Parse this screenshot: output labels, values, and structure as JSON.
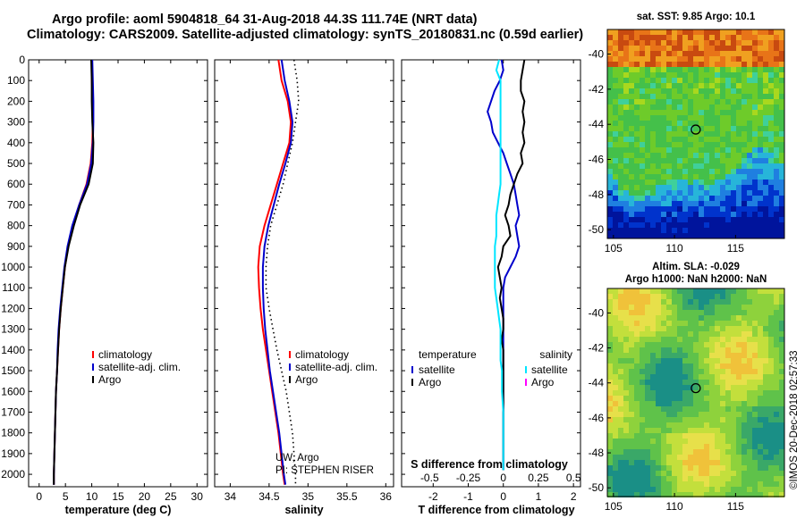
{
  "header": {
    "line1": "Argo profile: aoml 5904818_64 31-Aug-2018 44.3S 111.74E (NRT data)",
    "line2": "Climatology: CARS2009. Satellite-adjusted climatology: synTS_20180831.nc (0.59d earlier)"
  },
  "credit": "©IMOS 20-Dec-2018 02:57:33",
  "colors": {
    "climatology": "#ff0000",
    "satellite": "#0000cc",
    "argo": "#000000",
    "sat_salinity": "#00e5ff",
    "argo_salinity": "#ff00ff"
  },
  "chart_data": [
    {
      "type": "line",
      "xlabel": "temperature (deg C)",
      "ylabel": "",
      "xlim": [
        -2,
        32
      ],
      "ylim": [
        2060,
        0
      ],
      "xticks": [
        "0",
        "5",
        "10",
        "15",
        "20",
        "25",
        "30"
      ],
      "yticks": [
        "0",
        "100",
        "200",
        "300",
        "400",
        "500",
        "600",
        "700",
        "800",
        "900",
        "1000",
        "1100",
        "1200",
        "1300",
        "1400",
        "1500",
        "1600",
        "1700",
        "1800",
        "1900",
        "2000"
      ],
      "depth": [
        0,
        100,
        200,
        300,
        400,
        500,
        600,
        700,
        800,
        900,
        1000,
        1100,
        1200,
        1300,
        1400,
        1500,
        1600,
        1700,
        1800,
        1900,
        2000,
        2050
      ],
      "series": [
        {
          "name": "climatology",
          "style": "solid",
          "values": [
            10.0,
            10.0,
            10.2,
            10.2,
            10.1,
            9.8,
            9.0,
            7.6,
            6.4,
            5.5,
            4.9,
            4.5,
            4.1,
            3.8,
            3.6,
            3.4,
            3.2,
            3.1,
            3.0,
            2.9,
            2.8,
            2.8
          ]
        },
        {
          "name": "satellite-adj. clim.",
          "style": "solid",
          "values": [
            10.1,
            10.2,
            10.3,
            10.3,
            10.2,
            9.9,
            9.1,
            7.6,
            6.3,
            5.4,
            4.8,
            4.4,
            4.0,
            3.7,
            3.5,
            3.4,
            3.2,
            3.1,
            3.0,
            2.9,
            2.8,
            2.8
          ]
        },
        {
          "name": "Argo",
          "style": "solid",
          "values": [
            9.9,
            10.0,
            10.0,
            10.1,
            10.3,
            10.2,
            9.4,
            7.8,
            6.6,
            5.6,
            4.9,
            4.5,
            4.1,
            3.8,
            3.6,
            3.4,
            3.2,
            3.1,
            3.0,
            2.9,
            2.8,
            2.8
          ]
        }
      ]
    },
    {
      "type": "line",
      "xlabel": "salinity",
      "ylabel": "",
      "xlim": [
        33.8,
        36.1
      ],
      "ylim": [
        2060,
        0
      ],
      "xticks": [
        "34",
        "34.5",
        "35",
        "35.5",
        "36"
      ],
      "depth": [
        0,
        100,
        200,
        300,
        400,
        500,
        600,
        700,
        800,
        900,
        1000,
        1100,
        1200,
        1300,
        1400,
        1500,
        1600,
        1700,
        1800,
        1900,
        2000,
        2050
      ],
      "series": [
        {
          "name": "climatology",
          "style": "solid",
          "values": [
            34.62,
            34.66,
            34.74,
            34.78,
            34.76,
            34.68,
            34.6,
            34.52,
            34.44,
            34.38,
            34.36,
            34.37,
            34.39,
            34.42,
            34.46,
            34.5,
            34.54,
            34.58,
            34.62,
            34.65,
            34.68,
            34.7
          ]
        },
        {
          "name": "satellite-adj. clim.",
          "style": "solid",
          "values": [
            34.66,
            34.7,
            34.76,
            34.8,
            34.78,
            34.71,
            34.63,
            34.56,
            34.49,
            34.44,
            34.42,
            34.42,
            34.43,
            34.45,
            34.48,
            34.51,
            34.55,
            34.59,
            34.63,
            34.66,
            34.69,
            34.71
          ]
        },
        {
          "name": "Argo",
          "style": "dotted",
          "values": [
            34.82,
            34.86,
            34.88,
            34.84,
            34.8,
            34.74,
            34.68,
            34.6,
            34.52,
            34.48,
            34.46,
            34.46,
            34.5,
            34.55,
            34.6,
            34.66,
            34.72,
            34.76,
            34.8,
            34.82,
            34.84,
            34.84
          ]
        }
      ],
      "annotation": [
        "UW, Argo",
        "PI: STEPHEN RISER"
      ]
    },
    {
      "type": "line",
      "xlabel": "T difference from climatology",
      "xlabel_top": "S difference from climatology",
      "xlim": [
        -2.9,
        2.2
      ],
      "ylim": [
        2060,
        0
      ],
      "xticks": [
        "-2",
        "-1",
        "0",
        "1",
        "2"
      ],
      "xticks_s": [
        "-0.5",
        "-0.25",
        "0",
        "0.25",
        "0.5"
      ],
      "depth": [
        0,
        50,
        100,
        150,
        200,
        250,
        300,
        350,
        400,
        450,
        500,
        550,
        600,
        650,
        700,
        750,
        800,
        850,
        900,
        950,
        1000,
        1050,
        1100,
        1150,
        1200,
        1250,
        1300,
        1350,
        1400,
        1450,
        1500,
        1550,
        1600,
        1700,
        1800,
        1900,
        1980
      ],
      "series": [
        {
          "name": "temperature satellite",
          "style": "solid",
          "values": [
            -0.05,
            0.0,
            -0.1,
            -0.25,
            -0.35,
            -0.45,
            -0.35,
            -0.3,
            -0.15,
            0.0,
            0.1,
            0.2,
            0.3,
            0.35,
            0.4,
            0.45,
            0.35,
            0.4,
            0.45,
            0.35,
            0.2,
            0.05,
            0.0,
            0.0,
            0.0,
            0.0,
            0.0,
            0.0,
            0.0,
            0.0,
            0.0,
            0.0,
            0.0,
            0.0,
            0.0,
            0.0,
            0.0
          ]
        },
        {
          "name": "temperature Argo",
          "style": "solid",
          "values": [
            0.6,
            0.55,
            0.5,
            0.5,
            0.6,
            0.55,
            0.6,
            0.55,
            0.6,
            0.5,
            0.55,
            0.4,
            0.3,
            0.2,
            0.15,
            0.05,
            0.15,
            0.2,
            0.0,
            -0.05,
            -0.15,
            -0.1,
            -0.05,
            -0.1,
            -0.05,
            0.0,
            0.0,
            -0.05,
            0.0,
            0.0,
            0.0,
            0.0,
            0.0,
            0.0,
            0.0,
            0.0,
            0.0
          ]
        },
        {
          "name": "salinity satellite",
          "style": "solid",
          "values": [
            -0.03,
            -0.05,
            -0.02,
            -0.02,
            -0.02,
            -0.02,
            -0.02,
            -0.02,
            -0.02,
            -0.02,
            -0.02,
            -0.02,
            -0.02,
            -0.03,
            -0.04,
            -0.05,
            -0.05,
            -0.05,
            -0.06,
            -0.06,
            -0.06,
            -0.06,
            -0.06,
            -0.05,
            -0.04,
            -0.03,
            -0.02,
            -0.02,
            -0.02,
            -0.02,
            -0.01,
            -0.01,
            -0.01,
            0.0,
            0.0,
            0.0,
            0.0
          ]
        }
      ],
      "legend": {
        "temperature_header": "temperature",
        "salinity_header": "salinity",
        "t_entries": [
          "satellite",
          "Argo"
        ],
        "s_entries": [
          "satellite",
          "Argo"
        ]
      }
    },
    {
      "type": "heatmap",
      "title": "sat. SST: 9.85 Argo: 10.1",
      "xticks": [
        "105",
        "110",
        "115"
      ],
      "yticks": [
        "-40",
        "-42",
        "-44",
        "-46",
        "-48",
        "-50"
      ],
      "xlim": [
        104.5,
        119
      ],
      "ylim": [
        -50.5,
        -38.6
      ],
      "marker": {
        "lon": 111.74,
        "lat": -44.3
      }
    },
    {
      "type": "heatmap",
      "title": "Altim. SLA: -0.029",
      "subtitle": "Argo h1000: NaN h2000: NaN",
      "xticks": [
        "105",
        "110",
        "115"
      ],
      "yticks": [
        "-40",
        "-42",
        "-44",
        "-46",
        "-48",
        "-50"
      ],
      "xlim": [
        104.5,
        119
      ],
      "ylim": [
        -50.5,
        -38.6
      ],
      "marker": {
        "lon": 111.74,
        "lat": -44.3
      }
    }
  ]
}
